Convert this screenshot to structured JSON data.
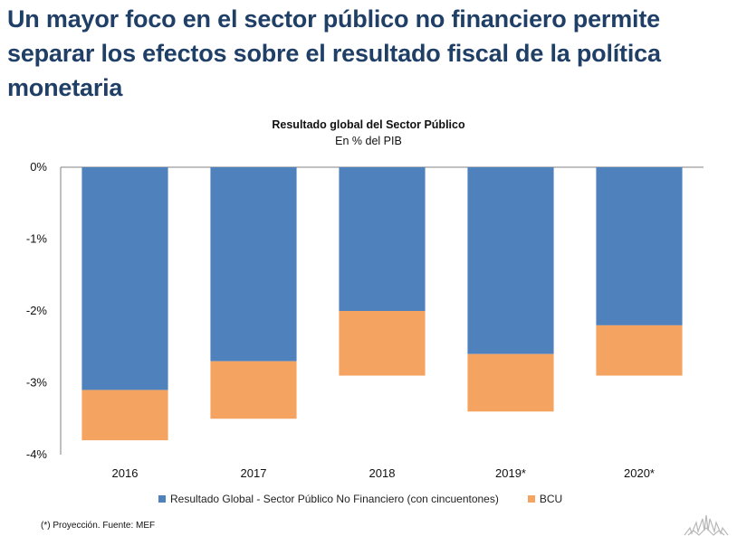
{
  "headline": "Un mayor foco en el sector público no financiero permite separar los efectos sobre el resultado fiscal de la política monetaria",
  "footnote": "(*) Proyección. Fuente: MEF",
  "logo_icon": "sun-emblem-icon",
  "chart_data": {
    "type": "bar",
    "stacked": true,
    "title": "Resultado global del Sector Público",
    "subtitle": "En % del PIB",
    "xlabel": "",
    "ylabel": "",
    "categories": [
      "2016",
      "2017",
      "2018",
      "2019*",
      "2020*"
    ],
    "series": [
      {
        "name": "Resultado Global - Sector Público No Financiero (con cincuentones)",
        "color": "#4f81bd",
        "values": [
          -3.1,
          -2.7,
          -2.0,
          -2.6,
          -2.2
        ]
      },
      {
        "name": "BCU",
        "color": "#f4a460",
        "values": [
          -0.7,
          -0.8,
          -0.9,
          -0.8,
          -0.7
        ]
      }
    ],
    "ylim": [
      -4,
      0
    ],
    "yticks": [
      0,
      -1,
      -2,
      -3,
      -4
    ],
    "ytick_labels": [
      "0%",
      "-1%",
      "-2%",
      "-3%",
      "-4%"
    ],
    "grid": false,
    "legend_position": "bottom"
  }
}
